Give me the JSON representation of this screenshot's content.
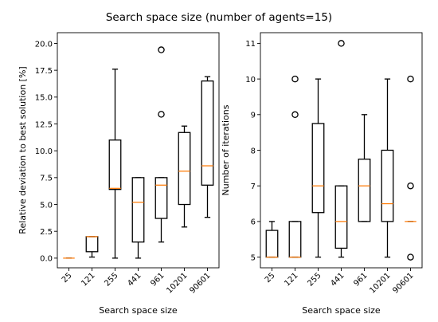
{
  "figure": {
    "suptitle": "Search space size (number of agents=15)"
  },
  "colors": {
    "box": "#000000",
    "median": "#ff7f0e",
    "background": "#ffffff"
  },
  "chart_data": [
    {
      "type": "box",
      "categories": [
        "25",
        "121",
        "255",
        "441",
        "961",
        "10201",
        "90601"
      ],
      "xlabel": "Search space size",
      "ylabel": "Relative deviation to best solution [%]",
      "ylim": [
        -0.9,
        21.0
      ],
      "yticks": [
        0.0,
        2.5,
        5.0,
        7.5,
        10.0,
        12.5,
        15.0,
        17.5,
        20.0
      ],
      "ytick_labels": [
        "0.0",
        "2.5",
        "5.0",
        "7.5",
        "10.0",
        "12.5",
        "15.0",
        "17.5",
        "20.0"
      ],
      "boxes": [
        {
          "category": "25",
          "whislo": 0.0,
          "q1": 0.0,
          "med": 0.0,
          "q3": 0.0,
          "whishi": 0.0,
          "fliers": []
        },
        {
          "category": "121",
          "whislo": 0.1,
          "q1": 0.6,
          "med": 2.0,
          "q3": 2.0,
          "whishi": 2.0,
          "fliers": []
        },
        {
          "category": "255",
          "whislo": 0.0,
          "q1": 6.4,
          "med": 6.5,
          "q3": 11.0,
          "whishi": 17.6,
          "fliers": []
        },
        {
          "category": "441",
          "whislo": 0.0,
          "q1": 1.5,
          "med": 5.2,
          "q3": 7.5,
          "whishi": 7.5,
          "fliers": []
        },
        {
          "category": "961",
          "whislo": 1.5,
          "q1": 3.7,
          "med": 6.8,
          "q3": 7.5,
          "whishi": 7.5,
          "fliers": [
            13.4,
            19.4
          ]
        },
        {
          "category": "10201",
          "whislo": 2.9,
          "q1": 5.0,
          "med": 8.1,
          "q3": 11.7,
          "whishi": 12.3,
          "fliers": []
        },
        {
          "category": "90601",
          "whislo": 3.8,
          "q1": 6.8,
          "med": 8.6,
          "q3": 16.5,
          "whishi": 16.9,
          "fliers": []
        }
      ]
    },
    {
      "type": "box",
      "categories": [
        "25",
        "121",
        "255",
        "441",
        "961",
        "10201",
        "90601"
      ],
      "xlabel": "Search space size",
      "ylabel": "Number of iterations",
      "ylim": [
        4.7,
        11.3
      ],
      "yticks": [
        5,
        6,
        7,
        8,
        9,
        10,
        11
      ],
      "ytick_labels": [
        "5",
        "6",
        "7",
        "8",
        "9",
        "10",
        "11"
      ],
      "boxes": [
        {
          "category": "25",
          "whislo": 5.0,
          "q1": 5.0,
          "med": 5.0,
          "q3": 5.75,
          "whishi": 6.0,
          "fliers": []
        },
        {
          "category": "121",
          "whislo": 5.0,
          "q1": 5.0,
          "med": 5.0,
          "q3": 6.0,
          "whishi": 6.0,
          "fliers": [
            9,
            10
          ]
        },
        {
          "category": "255",
          "whislo": 5.0,
          "q1": 6.25,
          "med": 7.0,
          "q3": 8.75,
          "whishi": 10.0,
          "fliers": []
        },
        {
          "category": "441",
          "whislo": 5.0,
          "q1": 5.25,
          "med": 6.0,
          "q3": 7.0,
          "whishi": 7.0,
          "fliers": [
            11
          ]
        },
        {
          "category": "961",
          "whislo": 6.0,
          "q1": 6.0,
          "med": 7.0,
          "q3": 7.75,
          "whishi": 9.0,
          "fliers": []
        },
        {
          "category": "10201",
          "whislo": 5.0,
          "q1": 6.0,
          "med": 6.5,
          "q3": 8.0,
          "whishi": 10.0,
          "fliers": []
        },
        {
          "category": "90601",
          "whislo": 6.0,
          "q1": 6.0,
          "med": 6.0,
          "q3": 6.0,
          "whishi": 6.0,
          "fliers": [
            5,
            7,
            10
          ]
        }
      ]
    }
  ]
}
